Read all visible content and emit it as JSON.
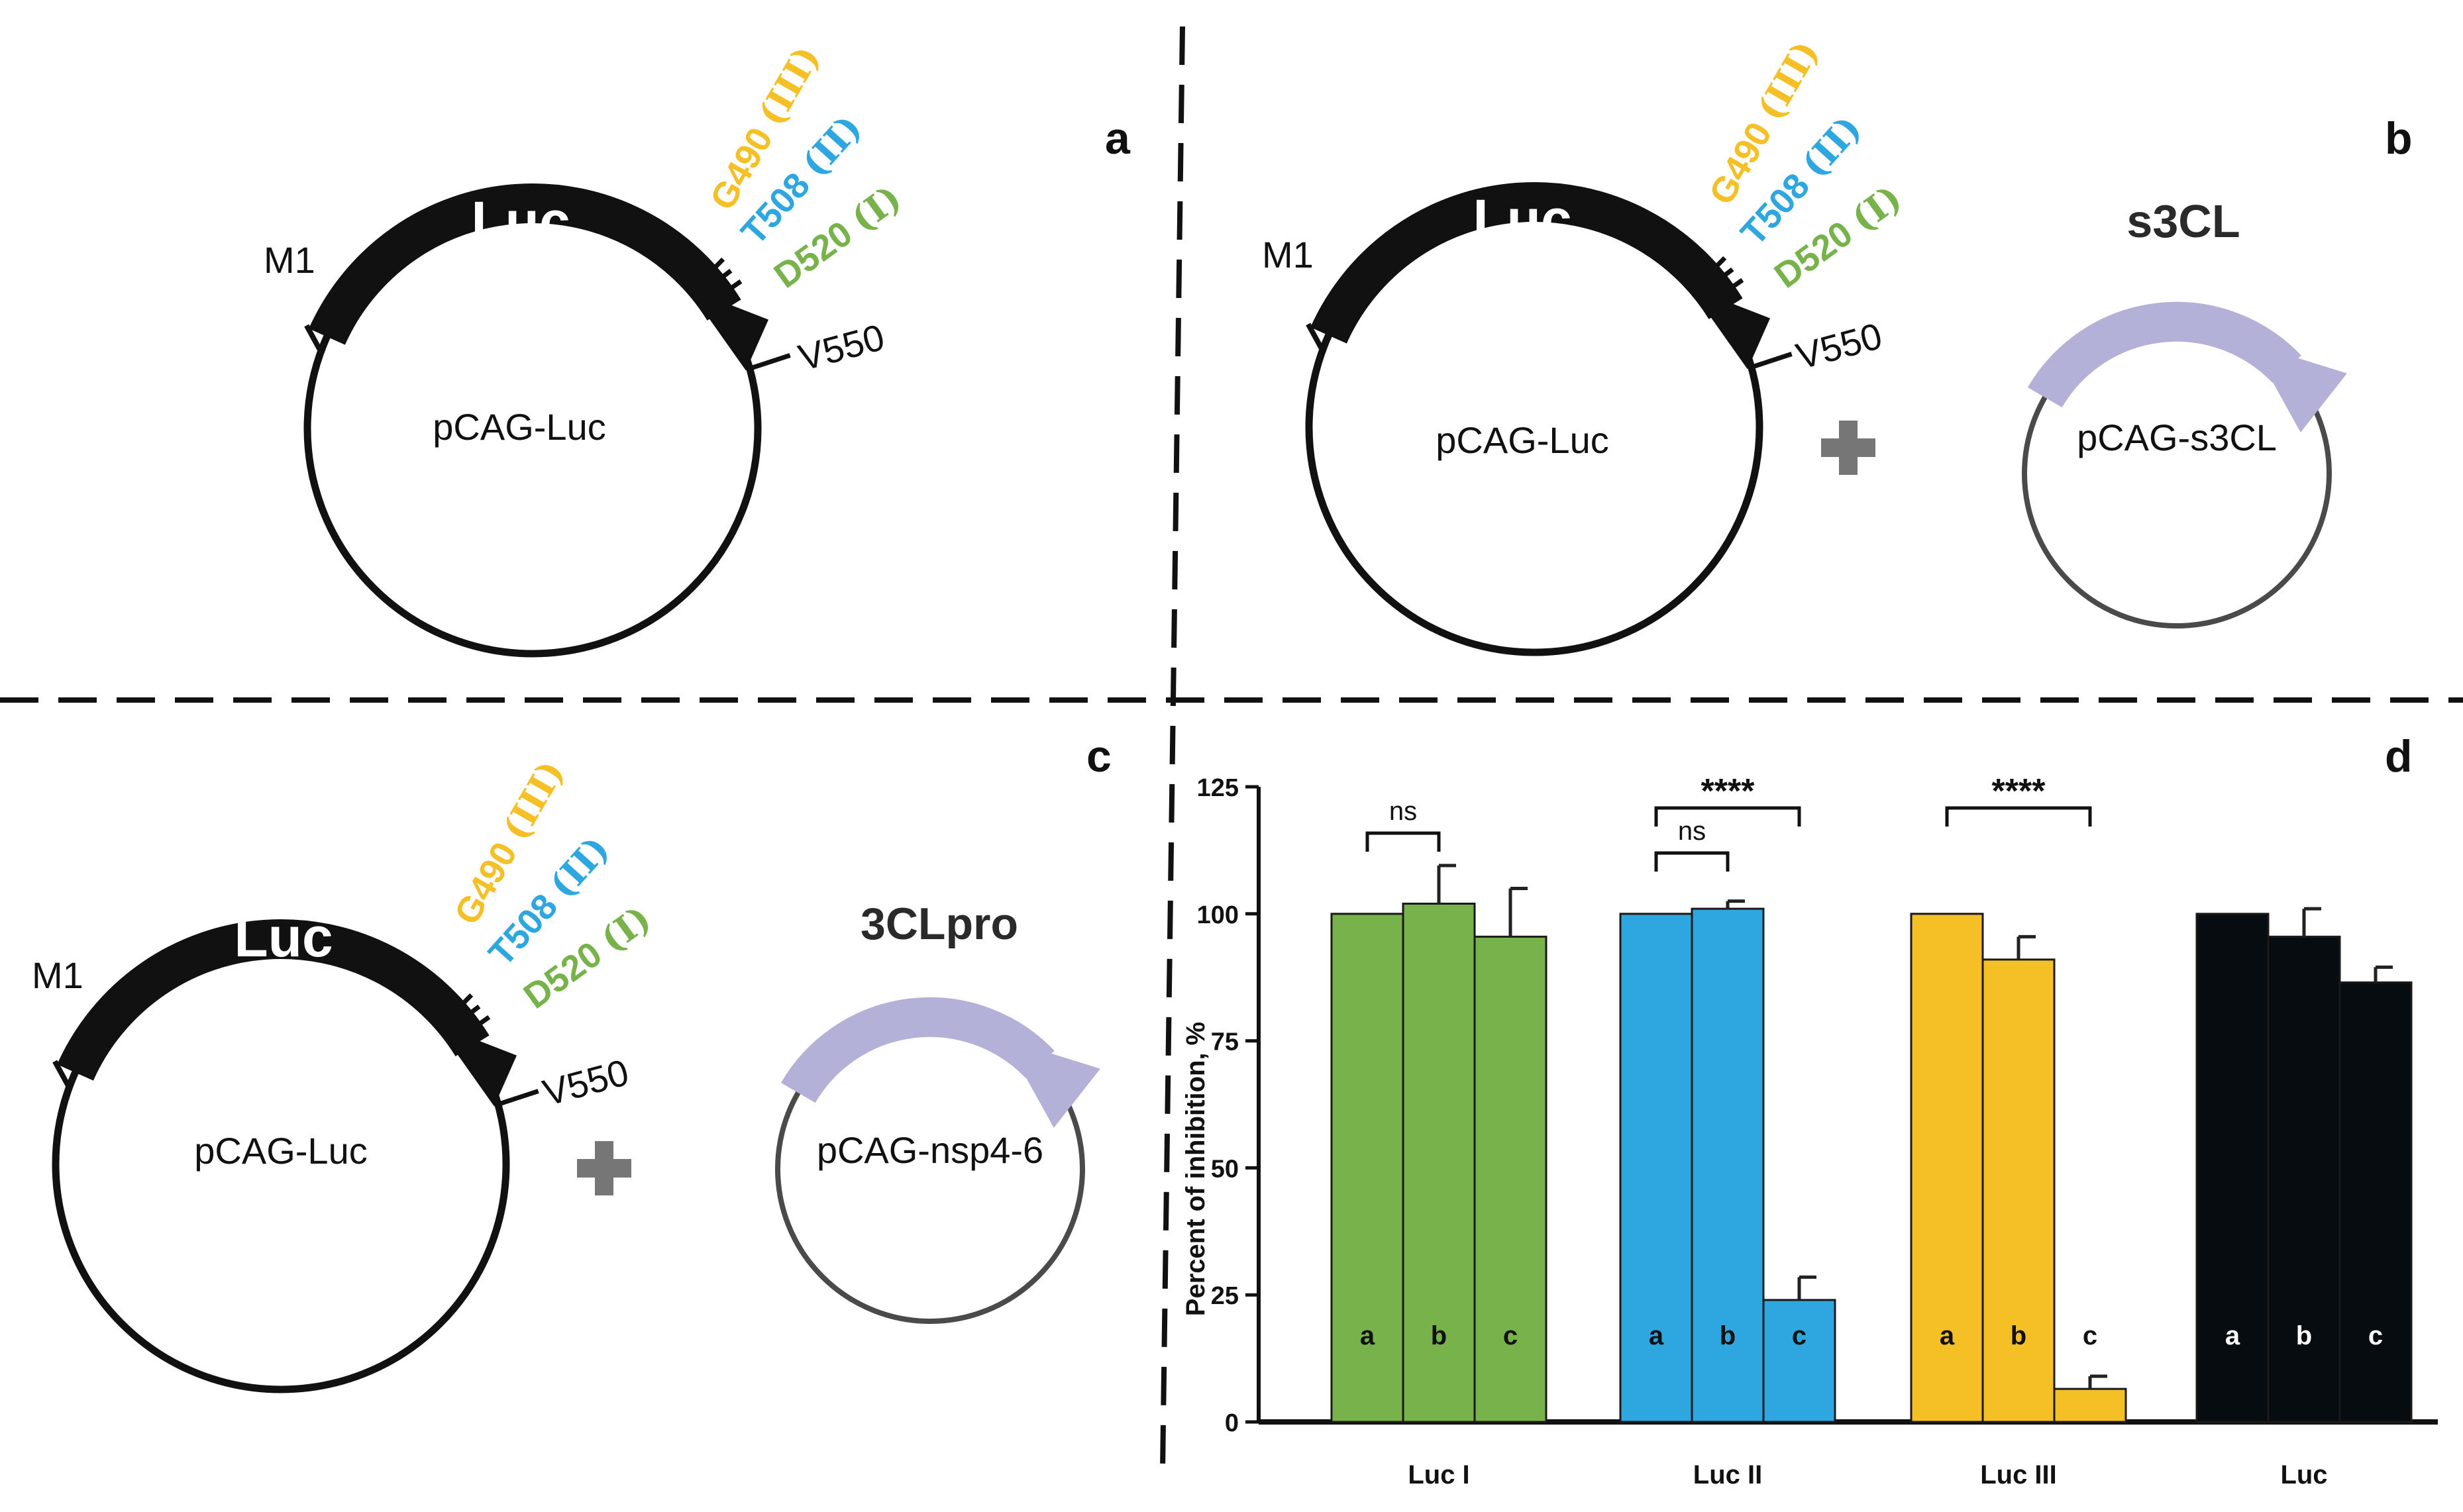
{
  "panels": {
    "a": {
      "letter": "a",
      "plasmid_label": "pCAG-Luc",
      "gene_label": "Luc",
      "start_site": "M1",
      "end_site": "V550",
      "sites": [
        {
          "code": "G490",
          "roman": "(III)",
          "color": "#f5bf26"
        },
        {
          "code": "T508",
          "roman": "(II)",
          "color": "#2ea6df"
        },
        {
          "code": "D520",
          "roman": "(I)",
          "color": "#77b24a"
        }
      ]
    },
    "b": {
      "letter": "b",
      "plasmid_label": "pCAG-Luc",
      "gene_label": "Luc",
      "start_site": "M1",
      "end_site": "V550",
      "sites": [
        {
          "code": "G490",
          "roman": "(III)",
          "color": "#f5bf26"
        },
        {
          "code": "T508",
          "roman": "(II)",
          "color": "#2ea6df"
        },
        {
          "code": "D520",
          "roman": "(I)",
          "color": "#77b24a"
        }
      ],
      "second_plasmid_label": "pCAG-s3CL",
      "second_gene_label": "s3CL"
    },
    "c": {
      "letter": "c",
      "plasmid_label": "pCAG-Luc",
      "gene_label": "Luc",
      "start_site": "M1",
      "end_site": "V550",
      "sites": [
        {
          "code": "G490",
          "roman": "(III)",
          "color": "#f5bf26"
        },
        {
          "code": "T508",
          "roman": "(II)",
          "color": "#2ea6df"
        },
        {
          "code": "D520",
          "roman": "(I)",
          "color": "#77b24a"
        }
      ],
      "second_plasmid_label": "pCAG-nsp4-6",
      "second_gene_label": "3CLpro"
    },
    "d": {
      "letter": "d"
    }
  },
  "colors": {
    "backbone": "#111111",
    "protease_arrow": "#b4b1d8",
    "plus_sign": "#767676"
  },
  "chart_data": {
    "type": "bar",
    "ylabel": "Percent of inhibition, %",
    "ylim": [
      0,
      125
    ],
    "yticks": [
      0,
      25,
      50,
      75,
      100,
      125
    ],
    "groups": [
      {
        "name": "Luc I",
        "color": "#77b24a",
        "bar_labels": [
          "a",
          "b",
          "c"
        ],
        "values": [
          100,
          102,
          95.5
        ],
        "errors": [
          0,
          7.5,
          9.5
        ]
      },
      {
        "name": "Luc II",
        "color": "#2ea6df",
        "bar_labels": [
          "a",
          "b",
          "c"
        ],
        "values": [
          100,
          101,
          24
        ],
        "errors": [
          0,
          1.5,
          4.5
        ]
      },
      {
        "name": "Luc III",
        "color": "#f5bf26",
        "bar_labels": [
          "a",
          "b",
          "c"
        ],
        "values": [
          100,
          91,
          6.5
        ],
        "errors": [
          0,
          4.5,
          2.5
        ]
      },
      {
        "name": "Luc",
        "color": "#070c10",
        "bar_labels": [
          "a",
          "b",
          "c"
        ],
        "values": [
          100,
          95.5,
          86.5
        ],
        "errors": [
          0,
          5.5,
          3
        ]
      }
    ],
    "significance": [
      {
        "group": 0,
        "from": 0,
        "to": 1,
        "label": "ns",
        "level": 0
      },
      {
        "group": 1,
        "from": 0,
        "to": 1,
        "label": "ns",
        "level": 0
      },
      {
        "group": 1,
        "from": 0,
        "to": 2,
        "label": "****",
        "level": 1
      },
      {
        "group": 2,
        "from": 0,
        "to": 2,
        "label": "****",
        "level": 0
      }
    ]
  }
}
